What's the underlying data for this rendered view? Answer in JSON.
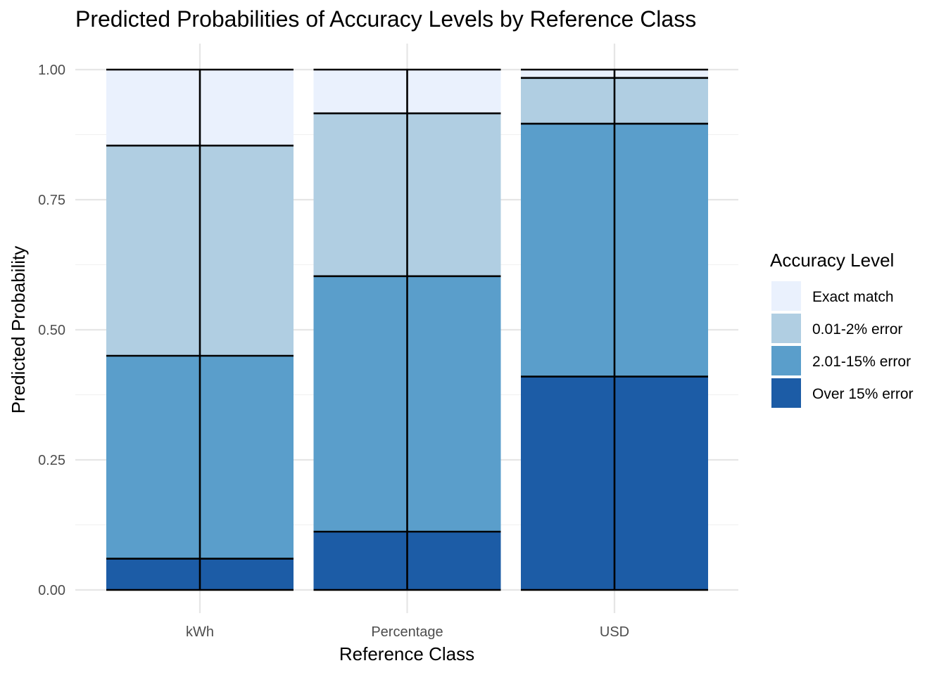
{
  "chart_data": {
    "type": "bar",
    "stacked": true,
    "title": "Predicted Probabilities of Accuracy Levels by Reference Class",
    "xlabel": "Reference Class",
    "ylabel": "Predicted Probability",
    "categories": [
      "kWh",
      "Percentage",
      "USD"
    ],
    "ylim": [
      0,
      1
    ],
    "yticks": [
      "0.00",
      "0.25",
      "0.50",
      "0.75",
      "1.00"
    ],
    "grid": true,
    "legend": {
      "title": "Accuracy Level",
      "position": "right"
    },
    "series": [
      {
        "name": "Over 15% error",
        "color": "#1c5ca6",
        "values": [
          0.06,
          0.112,
          0.41
        ]
      },
      {
        "name": "2.01-15% error",
        "color": "#5a9ecb",
        "values": [
          0.39,
          0.491,
          0.486
        ]
      },
      {
        "name": "0.01-2% error",
        "color": "#b0cee2",
        "values": [
          0.404,
          0.313,
          0.088
        ]
      },
      {
        "name": "Exact match",
        "color": "#eaf1fd",
        "values": [
          0.146,
          0.084,
          0.016
        ]
      }
    ],
    "legend_order": [
      "Exact match",
      "0.01-2% error",
      "2.01-15% error",
      "Over 15% error"
    ]
  }
}
